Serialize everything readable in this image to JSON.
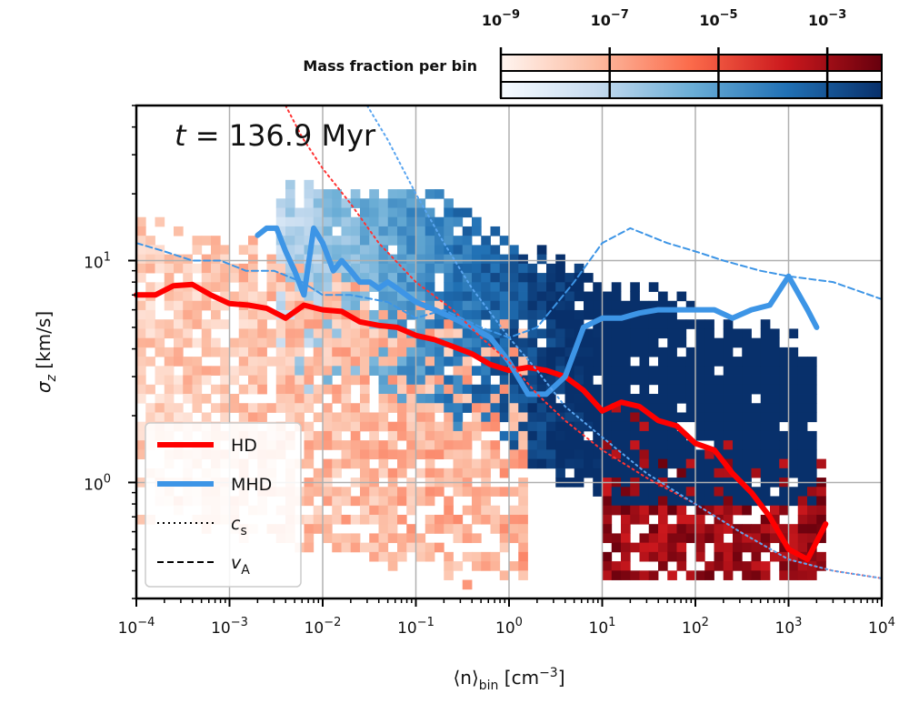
{
  "chart_data": {
    "type": "heatmap",
    "title": "t = 136.9 Myr",
    "title_parts": {
      "var": "t",
      "rest": " = 136.9 Myr"
    },
    "xlabel": {
      "base": "⟨n⟩",
      "sub": "bin",
      "unit": " [cm",
      "exp": "−3",
      "close": "]"
    },
    "ylabel": {
      "base": "σ",
      "sub": "z",
      "unit": " [km/s]"
    },
    "x_scale": "log",
    "y_scale": "log",
    "xlim": [
      0.0001,
      10000
    ],
    "ylim": [
      0.3,
      50
    ],
    "x_ticks": [
      {
        "value": 0.0001,
        "base": "10",
        "exp": "−4"
      },
      {
        "value": 0.001,
        "base": "10",
        "exp": "−3"
      },
      {
        "value": 0.01,
        "base": "10",
        "exp": "−2"
      },
      {
        "value": 0.1,
        "base": "10",
        "exp": "−1"
      },
      {
        "value": 1,
        "base": "10",
        "exp": "0"
      },
      {
        "value": 10,
        "base": "10",
        "exp": "1"
      },
      {
        "value": 100,
        "base": "10",
        "exp": "2"
      },
      {
        "value": 1000,
        "base": "10",
        "exp": "3"
      },
      {
        "value": 10000,
        "base": "10",
        "exp": "4"
      }
    ],
    "y_ticks": [
      {
        "value": 1,
        "base": "10",
        "exp": "0"
      },
      {
        "value": 10,
        "base": "10",
        "exp": "1"
      }
    ],
    "grid": true,
    "colorbar": {
      "label": "Mass fraction per bin",
      "scale": "log",
      "range": [
        1e-09,
        0.01
      ],
      "ticks": [
        {
          "value": 1e-09,
          "base": "10",
          "exp": "−9"
        },
        {
          "value": 1e-07,
          "base": "10",
          "exp": "−7"
        },
        {
          "value": 1e-05,
          "base": "10",
          "exp": "−5"
        },
        {
          "value": 0.001,
          "base": "10",
          "exp": "−3"
        }
      ],
      "maps": [
        {
          "name": "HD",
          "colors": [
            "#fff5f0",
            "#fcbba1",
            "#fb6a4a",
            "#cb181d",
            "#67000d"
          ]
        },
        {
          "name": "MHD",
          "colors": [
            "#f7fbff",
            "#c6dbef",
            "#6baed6",
            "#2171b5",
            "#08306b"
          ]
        }
      ]
    },
    "series": [
      {
        "name": "HD",
        "kind": "sigma_z",
        "color": "#ff0000",
        "style": "solid",
        "x": [
          0.0001,
          0.00016,
          0.00025,
          0.0004,
          0.00063,
          0.001,
          0.0016,
          0.0025,
          0.004,
          0.0063,
          0.01,
          0.016,
          0.025,
          0.04,
          0.063,
          0.1,
          0.16,
          0.25,
          0.4,
          0.63,
          1,
          1.6,
          2.5,
          4,
          6.3,
          10,
          16,
          25,
          40,
          63,
          100,
          160,
          250,
          400,
          630,
          1000,
          1600,
          2500
        ],
        "y": [
          7.0,
          7.0,
          7.7,
          7.8,
          7.0,
          6.4,
          6.3,
          6.1,
          5.5,
          6.3,
          6.0,
          5.9,
          5.3,
          5.1,
          5.0,
          4.6,
          4.4,
          4.1,
          3.8,
          3.4,
          3.2,
          3.3,
          3.2,
          3.0,
          2.6,
          2.1,
          2.3,
          2.2,
          1.9,
          1.8,
          1.5,
          1.4,
          1.1,
          0.9,
          0.7,
          0.5,
          0.45,
          0.65
        ]
      },
      {
        "name": "MHD",
        "kind": "sigma_z",
        "color": "#3d95e6",
        "style": "solid",
        "x": [
          0.002,
          0.0025,
          0.0032,
          0.004,
          0.005,
          0.0063,
          0.008,
          0.01,
          0.013,
          0.016,
          0.02,
          0.025,
          0.032,
          0.04,
          0.05,
          0.063,
          0.1,
          0.16,
          0.25,
          0.4,
          0.63,
          1,
          1.6,
          2.5,
          4,
          6.3,
          10,
          16,
          25,
          40,
          63,
          100,
          160,
          250,
          400,
          630,
          1000,
          1600,
          2000
        ],
        "y": [
          13,
          14,
          14,
          11,
          9,
          7,
          14,
          12,
          9,
          10,
          9,
          8,
          8,
          7.5,
          8,
          7.5,
          6.5,
          6,
          5.5,
          5,
          4.5,
          3.5,
          2.5,
          2.5,
          3.0,
          5.0,
          5.5,
          5.5,
          5.8,
          6.0,
          6.0,
          6.0,
          6.0,
          5.5,
          6.0,
          6.3,
          8.5,
          6.0,
          5.0
        ]
      },
      {
        "name": "HD c_s",
        "kind": "c_s",
        "color": "#ff3333",
        "style": "dotted",
        "x": [
          0.004,
          0.006,
          0.01,
          0.02,
          0.04,
          0.1,
          0.25,
          0.5,
          1,
          2,
          4,
          10,
          30,
          100,
          300,
          1000,
          3000,
          10000
        ],
        "y": [
          50,
          36,
          26,
          18,
          12,
          8,
          6,
          4.5,
          3.5,
          2.5,
          1.9,
          1.4,
          1.05,
          0.8,
          0.6,
          0.45,
          0.4,
          0.37
        ]
      },
      {
        "name": "MHD c_s",
        "kind": "c_s",
        "color": "#5aa5f0",
        "style": "dotted",
        "x": [
          0.03,
          0.05,
          0.1,
          0.2,
          0.4,
          1,
          2,
          4,
          10,
          30,
          100,
          300,
          1000,
          3000,
          10000
        ],
        "y": [
          50,
          35,
          20,
          12,
          7.5,
          4.5,
          3.2,
          2.2,
          1.6,
          1.1,
          0.8,
          0.6,
          0.45,
          0.4,
          0.37
        ]
      },
      {
        "name": "MHD v_A",
        "kind": "v_A",
        "color": "#3d95e6",
        "style": "dashed",
        "x": [
          0.0001,
          0.0002,
          0.0004,
          0.0008,
          0.0015,
          0.003,
          0.006,
          0.01,
          0.02,
          0.05,
          0.1,
          0.2,
          0.5,
          1,
          2,
          5,
          10,
          20,
          50,
          100,
          200,
          500,
          1000,
          3000,
          10000
        ],
        "y": [
          12,
          11,
          10,
          10,
          9,
          9,
          8,
          7,
          7,
          6.5,
          5.5,
          6,
          5,
          4.5,
          5,
          8,
          12,
          14,
          12,
          11,
          10,
          9,
          8.5,
          8,
          6.7
        ]
      }
    ],
    "legend": {
      "placement": "lower-left",
      "entries": [
        {
          "label": "HD",
          "style": "solid",
          "color": "#ff0000",
          "var": "",
          "sub": ""
        },
        {
          "label": "MHD",
          "style": "solid",
          "color": "#3d95e6",
          "var": "",
          "sub": ""
        },
        {
          "label": "",
          "style": "dotted",
          "color": "#000000",
          "var": "c",
          "sub": "s"
        },
        {
          "label": "",
          "style": "dashed",
          "color": "#000000",
          "var": "v",
          "sub": "A"
        }
      ]
    }
  }
}
